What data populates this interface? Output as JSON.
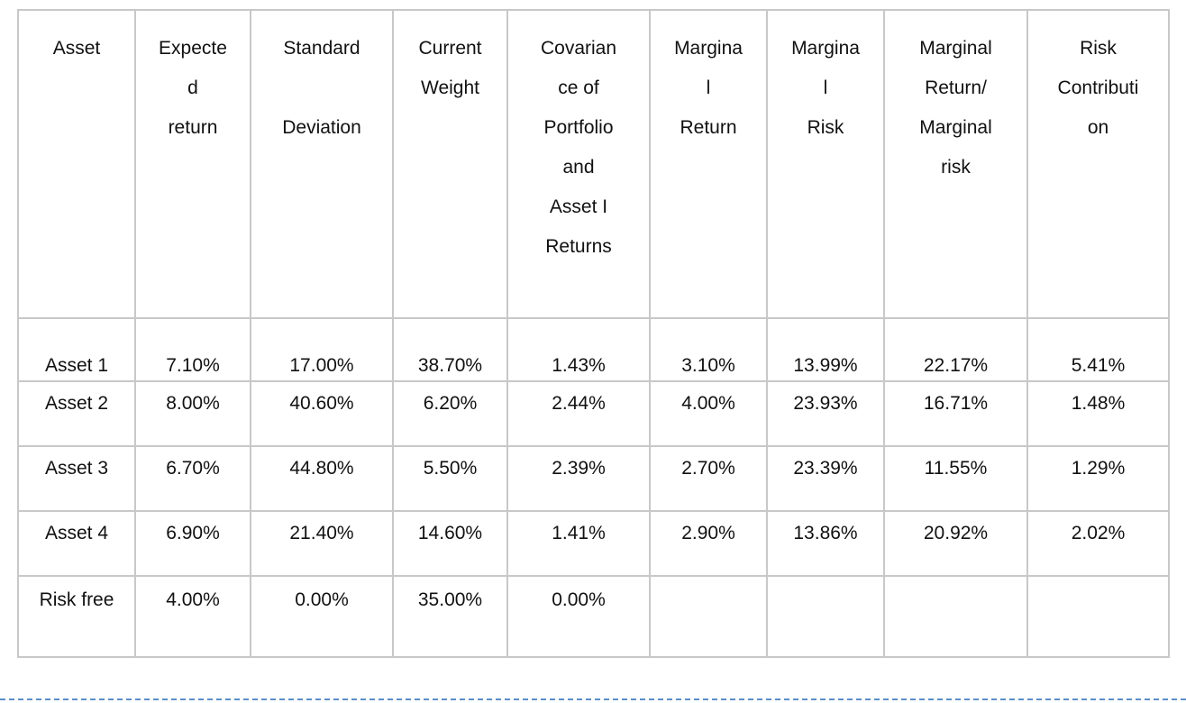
{
  "table": {
    "headers": [
      [
        "Asset"
      ],
      [
        "Expecte",
        "d",
        "return"
      ],
      [
        "Standard",
        "",
        "Deviation"
      ],
      [
        "Current",
        "Weight"
      ],
      [
        "Covarian",
        "ce of",
        "Portfolio",
        "and",
        "Asset I",
        "Returns"
      ],
      [
        "Margina",
        "l",
        "Return"
      ],
      [
        "Margina",
        "l",
        "Risk"
      ],
      [
        "Marginal",
        "Return/",
        "Marginal",
        "risk"
      ],
      [
        "Risk",
        "Contributi",
        "on"
      ]
    ],
    "rows": [
      [
        "Asset 1",
        "7.10%",
        "17.00%",
        "38.70%",
        "1.43%",
        "3.10%",
        "13.99%",
        "22.17%",
        "5.41%"
      ],
      [
        "Asset 2",
        "8.00%",
        "40.60%",
        "6.20%",
        "2.44%",
        "4.00%",
        "23.93%",
        "16.71%",
        "1.48%"
      ],
      [
        "Asset 3",
        "6.70%",
        "44.80%",
        "5.50%",
        "2.39%",
        "2.70%",
        "23.39%",
        "11.55%",
        "1.29%"
      ],
      [
        "Asset 4",
        "6.90%",
        "21.40%",
        "14.60%",
        "1.41%",
        "2.90%",
        "13.86%",
        "20.92%",
        "2.02%"
      ],
      [
        "Risk free",
        "4.00%",
        "0.00%",
        "35.00%",
        "0.00%",
        "",
        "",
        "",
        ""
      ]
    ]
  }
}
